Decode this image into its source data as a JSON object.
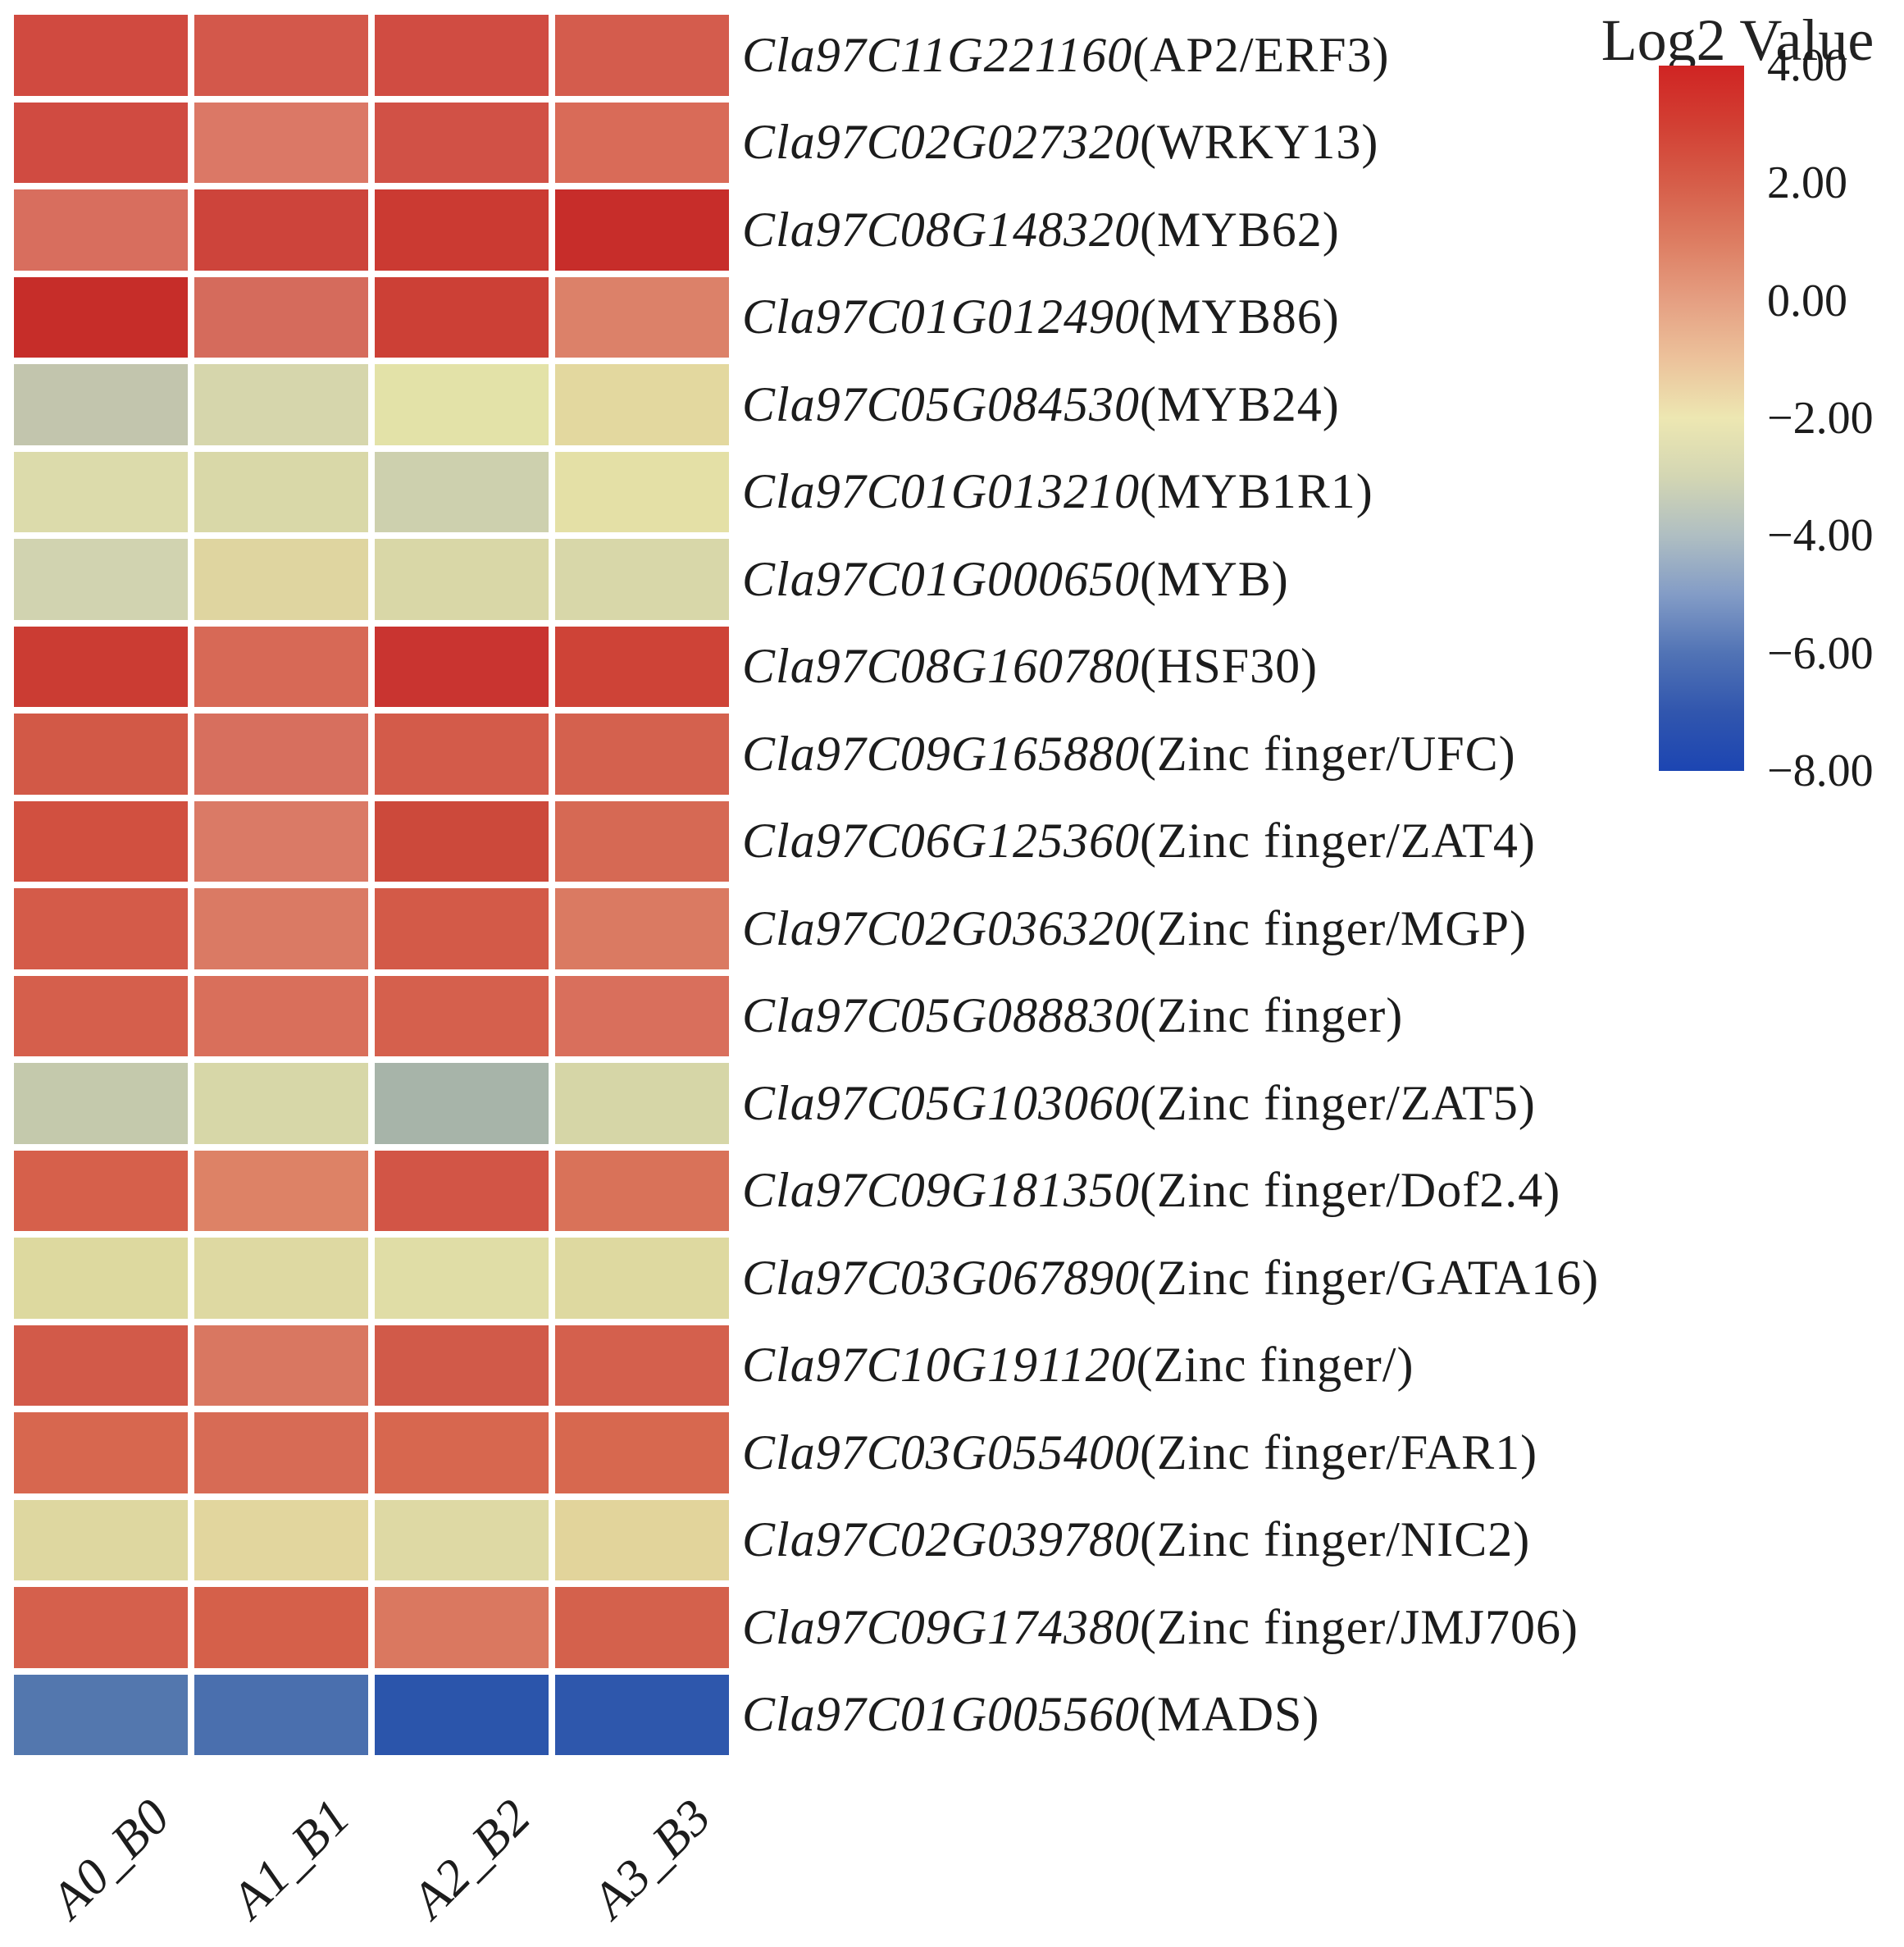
{
  "legend": {
    "title": "Log2 Value",
    "ticks": [
      "4.00",
      "2.00",
      "0.00",
      "−2.00",
      "−4.00",
      "−6.00",
      "−8.00"
    ],
    "gradient_top_to_bottom": [
      "#d02423",
      "#d23f33",
      "#d65d49",
      "#dd7d62",
      "#e59f82",
      "#ecc29b",
      "#ede7b2",
      "#d3d6b3",
      "#afbec2",
      "#839cc6",
      "#5173b5",
      "#3156ae",
      "#1c45b2"
    ]
  },
  "chart_data": {
    "type": "heatmap",
    "colorbar_title": "Log2 Value",
    "colorbar_range": [
      -8.0,
      4.0
    ],
    "colorbar_ticks": [
      4.0,
      2.0,
      0.0,
      -2.0,
      -4.0,
      -6.0,
      -8.0
    ],
    "columns": [
      "A0_B0",
      "A1_B1",
      "A2_B2",
      "A3_B3"
    ],
    "rows": [
      {
        "gene": "Cla97C11G221160",
        "tf": "(AP2/ERF3)",
        "values": [
          2.6,
          2.3,
          2.5,
          2.2
        ],
        "colors": [
          "#d04a40",
          "#d3584b",
          "#d04c42",
          "#d45c4d"
        ]
      },
      {
        "gene": "Cla97C02G027320",
        "tf": "(WRKY13)",
        "values": [
          2.5,
          1.3,
          2.4,
          1.6
        ],
        "colors": [
          "#d04b41",
          "#db7866",
          "#d15146",
          "#d96b58"
        ]
      },
      {
        "gene": "Cla97C08G148320",
        "tf": "(MYB62)",
        "values": [
          1.4,
          2.8,
          3.0,
          3.7
        ],
        "colors": [
          "#d86e5e",
          "#cd443b",
          "#cb3a32",
          "#c72d2a"
        ]
      },
      {
        "gene": "Cla97C01G012490",
        "tf": "(MYB86)",
        "values": [
          3.7,
          1.5,
          2.7,
          1.0
        ],
        "colors": [
          "#c62d29",
          "#d56b5c",
          "#cc4036",
          "#dc8169"
        ]
      },
      {
        "gene": "Cla97C05G084530",
        "tf": "(MYB24)",
        "values": [
          -3.0,
          -2.4,
          -2.0,
          -1.8
        ],
        "colors": [
          "#c2c5ad",
          "#d6d6ac",
          "#e3e2a8",
          "#e3d89f"
        ]
      },
      {
        "gene": "Cla97C01G013210",
        "tf": "(MYB1R1)",
        "values": [
          -2.3,
          -2.3,
          -2.8,
          -2.0
        ],
        "colors": [
          "#dcdbab",
          "#d9d8a8",
          "#cdd0ae",
          "#e4e0a6"
        ]
      },
      {
        "gene": "Cla97C01G000650",
        "tf": "(MYB)",
        "values": [
          -2.6,
          -1.9,
          -2.2,
          -2.2
        ],
        "colors": [
          "#d1d3b0",
          "#dfd5a0",
          "#d9d7a7",
          "#d8d7a9"
        ]
      },
      {
        "gene": "Cla97C08G160780",
        "tf": "(HSF30)",
        "values": [
          3.0,
          1.7,
          3.2,
          2.7
        ],
        "colors": [
          "#cb3c33",
          "#d76956",
          "#c93430",
          "#ce4337"
        ]
      },
      {
        "gene": "Cla97C09G165880",
        "tf": "(Zinc finger/UFC)",
        "values": [
          2.2,
          1.5,
          2.1,
          2.0
        ],
        "colors": [
          "#d25947",
          "#d76f5e",
          "#d35b4a",
          "#d4614e"
        ]
      },
      {
        "gene": "Cla97C06G125360",
        "tf": "(Zinc finger/ZAT4)",
        "values": [
          2.4,
          1.2,
          2.8,
          1.6
        ],
        "colors": [
          "#d15040",
          "#da7a66",
          "#cc493b",
          "#d66954"
        ]
      },
      {
        "gene": "Cla97C02G036320",
        "tf": "(Zinc finger/MGP)",
        "values": [
          2.2,
          1.3,
          2.2,
          1.3
        ],
        "colors": [
          "#d45b49",
          "#da7a64",
          "#d35a48",
          "#da7a62"
        ]
      },
      {
        "gene": "Cla97C05G088830",
        "tf": "(Zinc finger)",
        "values": [
          2.0,
          1.6,
          2.0,
          1.6
        ],
        "colors": [
          "#d55f4c",
          "#d96f5b",
          "#d5604d",
          "#d96f5c"
        ]
      },
      {
        "gene": "Cla97C05G103060",
        "tf": "(Zinc finger/ZAT5)",
        "values": [
          -2.9,
          -2.2,
          -3.8,
          -2.2
        ],
        "colors": [
          "#c4c9ac",
          "#d7d7a8",
          "#a7b4a9",
          "#d6d6a7"
        ]
      },
      {
        "gene": "Cla97C09G181350",
        "tf": "(Zinc finger/Dof2.4)",
        "values": [
          2.0,
          1.0,
          2.3,
          1.4
        ],
        "colors": [
          "#d6604b",
          "#dd8266",
          "#d25546",
          "#d97259"
        ]
      },
      {
        "gene": "Cla97C03G067890",
        "tf": "(Zinc finger/GATA16)",
        "values": [
          -1.8,
          -1.8,
          -1.9,
          -1.8
        ],
        "colors": [
          "#ddd99f",
          "#ded9a2",
          "#e0dda6",
          "#ded9a0"
        ]
      },
      {
        "gene": "Cla97C10G191120",
        "tf": "(Zinc finger/)",
        "values": [
          2.2,
          1.4,
          2.2,
          2.0
        ],
        "colors": [
          "#d25a49",
          "#d97761",
          "#d15a49",
          "#d4604d"
        ]
      },
      {
        "gene": "Cla97C03G055400",
        "tf": "(Zinc finger/FAR1)",
        "values": [
          1.8,
          1.7,
          1.8,
          1.8
        ],
        "colors": [
          "#d7674f",
          "#d76b55",
          "#d7674f",
          "#d7684f"
        ]
      },
      {
        "gene": "Cla97C02G039780",
        "tf": "(Zinc finger/NIC2)",
        "values": [
          -1.8,
          -1.6,
          -1.8,
          -1.6
        ],
        "colors": [
          "#ded7a0",
          "#e2d69e",
          "#ded9a4",
          "#e2d49b"
        ]
      },
      {
        "gene": "Cla97C09G174380",
        "tf": "(Zinc finger/JMJ706)",
        "values": [
          2.0,
          2.0,
          1.3,
          2.0
        ],
        "colors": [
          "#d5604c",
          "#d5604a",
          "#da7860",
          "#d4614c"
        ]
      },
      {
        "gene": "Cla97C01G005560",
        "tf": "(MADS)",
        "values": [
          -5.6,
          -5.9,
          -7.2,
          -7.1
        ],
        "colors": [
          "#5377ae",
          "#4a6fae",
          "#2b55ab",
          "#2e57ac"
        ]
      }
    ]
  }
}
